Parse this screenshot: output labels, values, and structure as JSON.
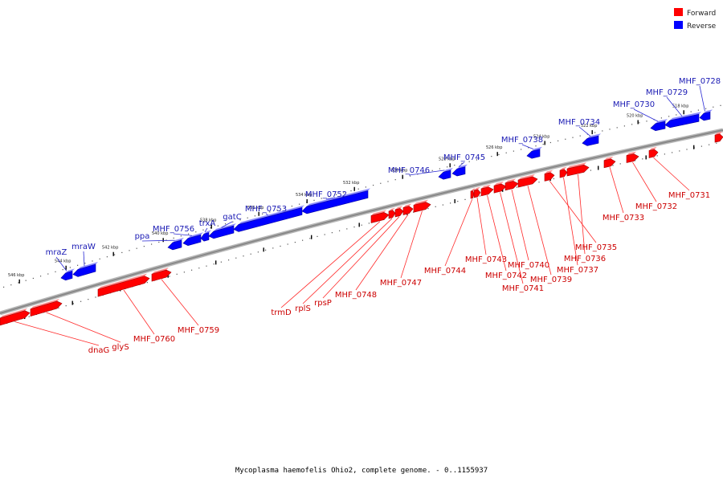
{
  "title": "Mycoplasma haemofelis Ohio2, complete genome. - 0..1155937",
  "legend": [
    {
      "label": "Forward",
      "color": "#ff0000"
    },
    {
      "label": "Reverse",
      "color": "#0000ff"
    }
  ],
  "colors": {
    "forward": "#ff0000",
    "reverse": "#0000ff",
    "forward_label": "#cc0000",
    "reverse_label": "#1a1ab4",
    "backbone": "#888888"
  },
  "ticks": [
    "546 kbp",
    "544 kbp",
    "542 kbp",
    "540 kbp",
    "538 kbp",
    "536 kbp",
    "534 kbp",
    "532 kbp",
    "530 kbp",
    "528 kbp",
    "526 kbp",
    "524 kbp",
    "522 kbp",
    "520 kbp",
    "518 kbp"
  ],
  "reverse_genes": [
    "mraZ",
    "mraW",
    "ppa",
    "MHF_0756",
    "trxA",
    "gatC",
    "MHF_0753",
    "MHF_0752",
    "MHF_0746",
    "MHF_0745",
    "MHF_0738",
    "MHF_0734",
    "MHF_0730",
    "MHF_0729",
    "MHF_0728"
  ],
  "forward_genes": [
    "dnaG",
    "glyS",
    "MHF_0760",
    "MHF_0759",
    "trmD",
    "rplS",
    "rpsP",
    "MHF_0748",
    "MHF_0747",
    "MHF_0744",
    "MHF_0743",
    "MHF_0742",
    "MHF_0741",
    "MHF_0740",
    "MHF_0739",
    "MHF_0737",
    "MHF_0736",
    "MHF_0735",
    "MHF_0733",
    "MHF_0732",
    "MHF_0731"
  ]
}
